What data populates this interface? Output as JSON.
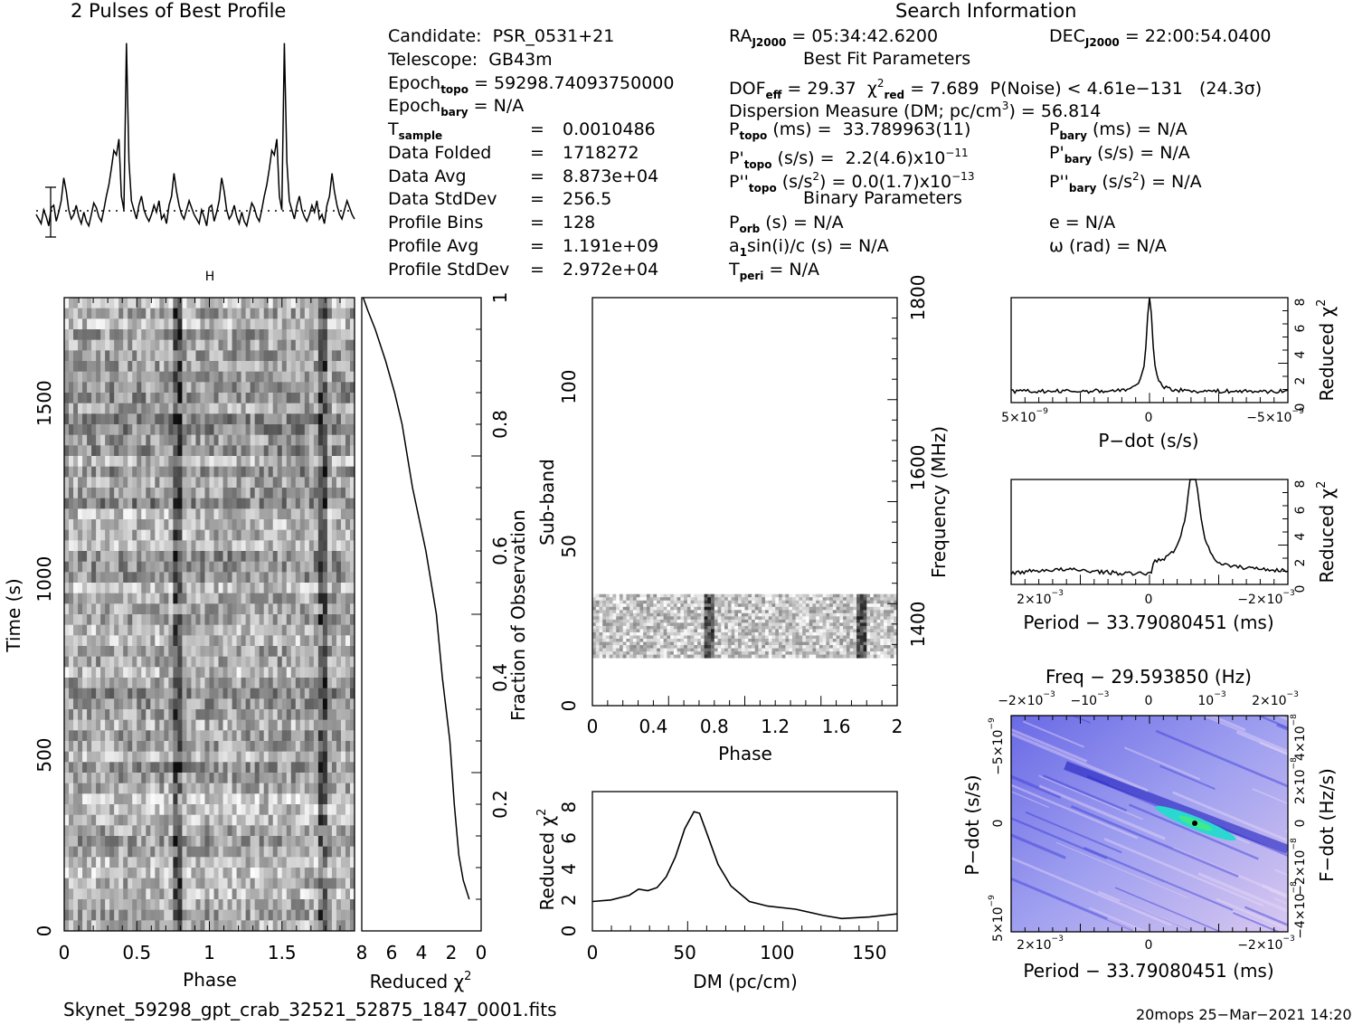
{
  "titles": {
    "profile": "2 Pulses of Best Profile",
    "search": "Search Information",
    "best_fit": "Best Fit Parameters",
    "binary": "Binary Parameters"
  },
  "info": {
    "candidate_label": "Candidate:",
    "candidate": "PSR_0531+21",
    "telescope_label": "Telescope:",
    "telescope": "GB43m",
    "epoch_topo_label": "Epoch",
    "epoch_topo_sub": "topo",
    "epoch_topo": "= 59298.74093750000",
    "epoch_bary_label": "Epoch",
    "epoch_bary_sub": "bary",
    "epoch_bary": "= N/A",
    "t_sample_label": "T",
    "t_sample_sub": "sample",
    "t_sample": "0.0010486",
    "data_folded_label": "Data Folded",
    "data_folded": "1718272",
    "data_avg_label": "Data Avg",
    "data_avg": "8.873e+04",
    "data_stddev_label": "Data StdDev",
    "data_stddev": "256.5",
    "profile_bins_label": "Profile Bins",
    "profile_bins": "128",
    "profile_avg_label": "Profile Avg",
    "profile_avg": "1.191e+09",
    "profile_stddev_label": "Profile StdDev",
    "profile_stddev": "2.972e+04",
    "eq": "=",
    "ra_label": "RA",
    "ra_sub": "J2000",
    "ra": "= 05:34:42.6200",
    "dec_label": "DEC",
    "dec_sub": "J2000",
    "dec": "= 22:00:54.0400",
    "dof_label": "DOF",
    "dof_sub": "eff",
    "dof": "= 29.37",
    "chi_label": "χ",
    "chi_sup": "2",
    "chi_sub": "red",
    "chi": "= 7.689",
    "pnoise": "P(Noise) < 4.61e−131   (24.3σ)",
    "dm_a": "Dispersion Measure (DM; pc/cm",
    "dm_sup": "3",
    "dm_b": ") = 56.814",
    "p_topo_sub": "topo",
    "p_topo": " (ms) =  33.789963(11)",
    "pd_topo_sub": "topo",
    "pd_topo_a": " (s/s) =  2.2(4.6)x10",
    "pd_topo_exp": "−11",
    "pdd_topo_sub": "topo",
    "pdd_topo_a": " (s/s",
    "pdd_topo_b": ") = 0.0(1.7)x10",
    "pdd_topo_exp": "−13",
    "p_bary_sub": "bary",
    "p_bary": " (ms) = N/A",
    "pd_bary_sub": "bary",
    "pd_bary": " (s/s) = N/A",
    "pdd_bary_sub": "bary",
    "pdd_bary_a": " (s/s",
    "pdd_bary_b": ") = N/A",
    "porb_sub": "orb",
    "porb": " (s) = N/A",
    "a1_a": "a",
    "a1_sub": "1",
    "a1_b": "sin(i)/c (s) = N/A",
    "tperi_sub": "peri",
    "tperi": " = N/A",
    "ecc": "e = N/A",
    "omega": "ω (rad) = N/A"
  },
  "footer": {
    "filename": "Skynet_59298_gpt_crab_32521_52875_1847_0001.fits",
    "stamp": "20mops 25−Mar−2021 14:20"
  },
  "chart_data": [
    {
      "id": "profile",
      "type": "line",
      "title": "2 Pulses of Best Profile",
      "x": "phase 0–2",
      "values": [
        0.22,
        0.2,
        0.18,
        0.24,
        0.21,
        0.17,
        0.25,
        0.26,
        0.19,
        0.23,
        0.28,
        0.38,
        0.32,
        0.24,
        0.2,
        0.22,
        0.26,
        0.21,
        0.18,
        0.23,
        0.19,
        0.17,
        0.22,
        0.27,
        0.25,
        0.21,
        0.19,
        0.24,
        0.3,
        0.35,
        0.42,
        0.5,
        0.48,
        0.55,
        0.3,
        0.24,
        0.97,
        0.45,
        0.28,
        0.24,
        0.2,
        0.26,
        0.3,
        0.24,
        0.21,
        0.19,
        0.22,
        0.26,
        0.23,
        0.28,
        0.2,
        0.22,
        0.18,
        0.26,
        0.3,
        0.4,
        0.32,
        0.26,
        0.22,
        0.2,
        0.24,
        0.28,
        0.25,
        0.22,
        0.2,
        0.18,
        0.24,
        0.21,
        0.17,
        0.25,
        0.26,
        0.19,
        0.23,
        0.28,
        0.38,
        0.32,
        0.24,
        0.2,
        0.22,
        0.26,
        0.21,
        0.18,
        0.23,
        0.19,
        0.17,
        0.22,
        0.27,
        0.25,
        0.21,
        0.19,
        0.24,
        0.3,
        0.35,
        0.42,
        0.5,
        0.48,
        0.55,
        0.3,
        0.24,
        0.97,
        0.45,
        0.28,
        0.24,
        0.2,
        0.26,
        0.3,
        0.24,
        0.21,
        0.19,
        0.22,
        0.26,
        0.23,
        0.28,
        0.2,
        0.22,
        0.18,
        0.26,
        0.3,
        0.4,
        0.32,
        0.26,
        0.22,
        0.2,
        0.24,
        0.28,
        0.25,
        0.22,
        0.2
      ]
    },
    {
      "id": "time_phase",
      "type": "heatmap",
      "xlabel": "Phase",
      "ylabel": "Time (s)",
      "xlim": [
        0,
        2
      ],
      "ylim": [
        0,
        1800
      ],
      "xticks": [
        "0",
        "0.5",
        "1",
        "1.5"
      ],
      "yticks": [
        "0",
        "500",
        "1000",
        "1500"
      ],
      "pulse_phases": [
        0.77,
        1.77
      ]
    },
    {
      "id": "chi_vs_time",
      "type": "line",
      "xlabel": "Reduced χ",
      "xlabel_sup": "2",
      "ylabel": "Fraction of Observation",
      "xlim": [
        8,
        0
      ],
      "ylim": [
        0,
        1
      ],
      "xticks": [
        "8",
        "6",
        "4",
        "2",
        "0"
      ],
      "yticks": [
        "0.2",
        "0.4",
        "0.6",
        "0.8",
        "1"
      ],
      "points": [
        [
          0.05,
          0.8
        ],
        [
          0.08,
          1.2
        ],
        [
          0.12,
          1.5
        ],
        [
          0.2,
          1.8
        ],
        [
          0.3,
          2.1
        ],
        [
          0.4,
          2.6
        ],
        [
          0.5,
          3.0
        ],
        [
          0.6,
          3.7
        ],
        [
          0.7,
          4.6
        ],
        [
          0.8,
          5.3
        ],
        [
          0.85,
          5.8
        ],
        [
          0.9,
          6.4
        ],
        [
          0.95,
          7.1
        ],
        [
          0.98,
          7.6
        ],
        [
          1.0,
          7.9
        ]
      ]
    },
    {
      "id": "subbands",
      "type": "heatmap",
      "xlabel": "Phase",
      "ylabel": "Sub-band",
      "y2label": "Frequency (MHz)",
      "xlim": [
        0,
        2
      ],
      "ylim": [
        0,
        128
      ],
      "xticks": [
        "0",
        "0.4",
        "0.8",
        "1.2",
        "1.6",
        "2"
      ],
      "yticks": [
        "0",
        "50",
        "100"
      ],
      "y2ticks": [
        "1400",
        "1600",
        "1800"
      ],
      "filled_subbands": [
        15,
        35
      ],
      "pulse_phases": [
        0.77,
        1.77
      ]
    },
    {
      "id": "dm_curve",
      "type": "line",
      "xlabel": "DM (pc/cm",
      "xlabel_sup": "3",
      "ylabel": "Reduced χ",
      "ylabel_sup": "2",
      "xlim": [
        0,
        165
      ],
      "ylim": [
        0,
        9
      ],
      "xticks": [
        "0",
        "50",
        "100",
        "150"
      ],
      "yticks": [
        "0",
        "2",
        "4",
        "6",
        "8"
      ],
      "points": [
        [
          0,
          1.9
        ],
        [
          10,
          2.0
        ],
        [
          20,
          2.3
        ],
        [
          25,
          2.7
        ],
        [
          30,
          2.6
        ],
        [
          35,
          2.8
        ],
        [
          40,
          3.5
        ],
        [
          45,
          4.8
        ],
        [
          50,
          6.6
        ],
        [
          55,
          7.7
        ],
        [
          58,
          7.6
        ],
        [
          62,
          6.3
        ],
        [
          68,
          4.3
        ],
        [
          75,
          2.9
        ],
        [
          85,
          1.9
        ],
        [
          95,
          1.6
        ],
        [
          110,
          1.4
        ],
        [
          125,
          1.0
        ],
        [
          135,
          0.8
        ],
        [
          150,
          0.9
        ],
        [
          165,
          1.1
        ]
      ]
    },
    {
      "id": "pdot_curve",
      "type": "line",
      "xlabel": "P−dot (s/s)",
      "ylabel": "Reduced χ",
      "ylabel_sup": "2",
      "xlim": [
        5e-09,
        -5e-09
      ],
      "ylim": [
        0,
        8
      ],
      "xticks": [
        "5×10",
        "0",
        "−5×10"
      ],
      "xticks_exp": [
        "−9",
        "",
        "−9"
      ],
      "yticks": [
        "0",
        "2",
        "4",
        "6",
        "8"
      ],
      "peak_x": 0,
      "peak_y": 7.6
    },
    {
      "id": "period_curve",
      "type": "line",
      "xlabel": "Period − 33.79080451 (ms)",
      "ylabel": "Reduced χ",
      "ylabel_sup": "2",
      "xlim": [
        0.0025,
        -0.0025
      ],
      "ylim": [
        0,
        8
      ],
      "xticks": [
        "2×10",
        "0",
        "−2×10"
      ],
      "xticks_exp": [
        "−3",
        "",
        "−3"
      ],
      "yticks": [
        "0",
        "2",
        "4",
        "6",
        "8"
      ],
      "peak_x": -0.0009,
      "peak_y": 7.7
    },
    {
      "id": "p_pdot_plane",
      "type": "heatmap",
      "title": "Freq − 29.593850 (Hz)",
      "xlabel": "Period − 33.79080451 (ms)",
      "ylabel": "P−dot (s/s)",
      "y2label": "F−dot (Hz/s)",
      "top_ticks": [
        "−2×10",
        "−10",
        "0",
        "10",
        "2×10"
      ],
      "top_ticks_exp": [
        "−3",
        "−3",
        "",
        "−3",
        "−3"
      ],
      "bottom_ticks": [
        "2×10",
        "0",
        "−2×10"
      ],
      "bottom_ticks_exp": [
        "−3",
        "",
        "−3"
      ],
      "left_ticks": [
        "−5×10",
        "0",
        "5×10"
      ],
      "left_ticks_exp": [
        "−9",
        "",
        "−9"
      ],
      "right_ticks": [
        "4×10",
        "2×10",
        "0",
        "−2×10",
        "−4×10"
      ],
      "right_ticks_exp": [
        "−8",
        "−8",
        "",
        "−8",
        "−8"
      ]
    }
  ]
}
